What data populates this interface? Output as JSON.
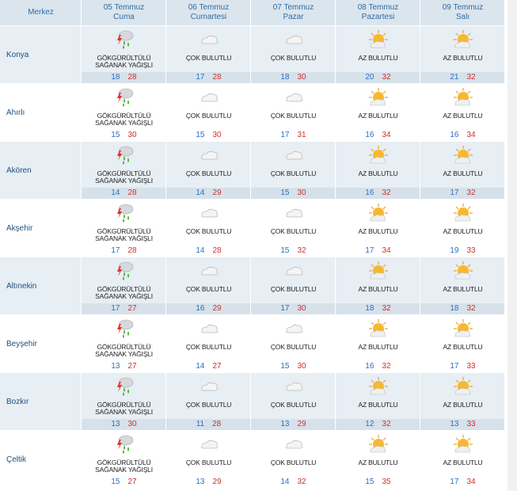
{
  "header": {
    "corner": "Merkez",
    "days": [
      {
        "date": "05 Temmuz",
        "day": "Cuma"
      },
      {
        "date": "06 Temmuz",
        "day": "Cumartesi"
      },
      {
        "date": "07 Temmuz",
        "day": "Pazar"
      },
      {
        "date": "08 Temmuz",
        "day": "Pazartesi"
      },
      {
        "date": "09 Temmuz",
        "day": "Salı"
      }
    ]
  },
  "rows": [
    {
      "city": "Konya",
      "cells": [
        {
          "condition": "GÖKGÜRÜLTÜLÜ SAĞANAK YAĞIŞLI",
          "min": 18,
          "max": 28
        },
        {
          "condition": "ÇOK BULUTLU",
          "min": 17,
          "max": 28
        },
        {
          "condition": "ÇOK BULUTLU",
          "min": 18,
          "max": 30
        },
        {
          "condition": "AZ BULUTLU",
          "min": 20,
          "max": 32
        },
        {
          "condition": "AZ BULUTLU",
          "min": 21,
          "max": 32
        }
      ]
    },
    {
      "city": "Ahırlı",
      "cells": [
        {
          "condition": "GÖKGÜRÜLTÜLÜ SAĞANAK YAĞIŞLI",
          "min": 15,
          "max": 30
        },
        {
          "condition": "ÇOK BULUTLU",
          "min": 15,
          "max": 30
        },
        {
          "condition": "ÇOK BULUTLU",
          "min": 17,
          "max": 31
        },
        {
          "condition": "AZ BULUTLU",
          "min": 16,
          "max": 34
        },
        {
          "condition": "AZ BULUTLU",
          "min": 16,
          "max": 34
        }
      ]
    },
    {
      "city": "Akören",
      "cells": [
        {
          "condition": "GÖKGÜRÜLTÜLÜ SAĞANAK YAĞIŞLI",
          "min": 14,
          "max": 28
        },
        {
          "condition": "ÇOK BULUTLU",
          "min": 14,
          "max": 29
        },
        {
          "condition": "ÇOK BULUTLU",
          "min": 15,
          "max": 30
        },
        {
          "condition": "AZ BULUTLU",
          "min": 16,
          "max": 32
        },
        {
          "condition": "AZ BULUTLU",
          "min": 17,
          "max": 32
        }
      ]
    },
    {
      "city": "Akşehir",
      "cells": [
        {
          "condition": "GÖKGÜRÜLTÜLÜ SAĞANAK YAĞIŞLI",
          "min": 17,
          "max": 28
        },
        {
          "condition": "ÇOK BULUTLU",
          "min": 14,
          "max": 28
        },
        {
          "condition": "ÇOK BULUTLU",
          "min": 15,
          "max": 32
        },
        {
          "condition": "AZ BULUTLU",
          "min": 17,
          "max": 34
        },
        {
          "condition": "AZ BULUTLU",
          "min": 19,
          "max": 33
        }
      ]
    },
    {
      "city": "Altınekin",
      "cells": [
        {
          "condition": "GÖKGÜRÜLTÜLÜ SAĞANAK YAĞIŞLI",
          "min": 17,
          "max": 27
        },
        {
          "condition": "ÇOK BULUTLU",
          "min": 16,
          "max": 29
        },
        {
          "condition": "ÇOK BULUTLU",
          "min": 17,
          "max": 30
        },
        {
          "condition": "AZ BULUTLU",
          "min": 18,
          "max": 32
        },
        {
          "condition": "AZ BULUTLU",
          "min": 18,
          "max": 32
        }
      ]
    },
    {
      "city": "Beyşehir",
      "cells": [
        {
          "condition": "GÖKGÜRÜLTÜLÜ SAĞANAK YAĞIŞLI",
          "min": 13,
          "max": 27
        },
        {
          "condition": "ÇOK BULUTLU",
          "min": 14,
          "max": 27
        },
        {
          "condition": "ÇOK BULUTLU",
          "min": 15,
          "max": 30
        },
        {
          "condition": "AZ BULUTLU",
          "min": 16,
          "max": 32
        },
        {
          "condition": "AZ BULUTLU",
          "min": 17,
          "max": 33
        }
      ]
    },
    {
      "city": "Bozkır",
      "cells": [
        {
          "condition": "GÖKGÜRÜLTÜLÜ SAĞANAK YAĞIŞLI",
          "min": 13,
          "max": 30
        },
        {
          "condition": "ÇOK BULUTLU",
          "min": 11,
          "max": 28
        },
        {
          "condition": "ÇOK BULUTLU",
          "min": 13,
          "max": 29
        },
        {
          "condition": "AZ BULUTLU",
          "min": 12,
          "max": 32
        },
        {
          "condition": "AZ BULUTLU",
          "min": 13,
          "max": 33
        }
      ]
    },
    {
      "city": "Çeltik",
      "cells": [
        {
          "condition": "GÖKGÜRÜLTÜLÜ SAĞANAK YAĞIŞLI",
          "min": 15,
          "max": 27
        },
        {
          "condition": "ÇOK BULUTLU",
          "min": 13,
          "max": 29
        },
        {
          "condition": "ÇOK BULUTLU",
          "min": 14,
          "max": 32
        },
        {
          "condition": "AZ BULUTLU",
          "min": 15,
          "max": 35
        },
        {
          "condition": "AZ BULUTLU",
          "min": 17,
          "max": 34
        }
      ]
    }
  ]
}
